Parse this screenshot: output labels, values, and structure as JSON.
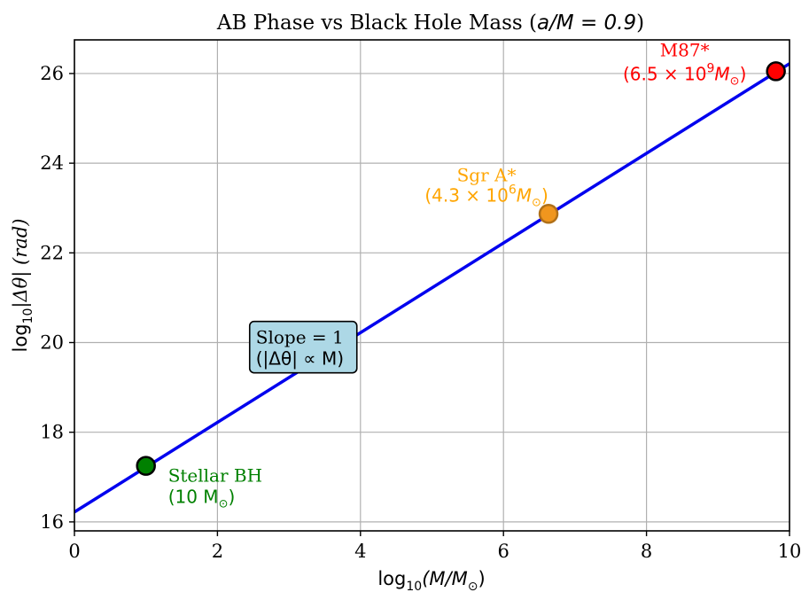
{
  "chart_data": {
    "type": "line",
    "title_prefix": "AB Phase vs Black Hole Mass (",
    "title_math": "a/M = 0.9",
    "title_suffix": ")",
    "xlabel": {
      "prefix": "log",
      "sub": "10",
      "body": "(M/M",
      "sun": "⊙",
      "end": ")"
    },
    "ylabel": {
      "prefix": "log",
      "sub": "10",
      "body": "|Δθ| (rad)"
    },
    "xlim": [
      0,
      10
    ],
    "ylim": [
      15.8,
      26.75
    ],
    "xticks": [
      0,
      2,
      4,
      6,
      8,
      10
    ],
    "yticks": [
      16,
      18,
      20,
      22,
      24,
      26
    ],
    "grid": true,
    "colors": {
      "line": "#0000ee",
      "grid": "#b0b0b0",
      "stellar": "#008000",
      "sgr": "#ffa500",
      "sgr_fill": "#f0961e",
      "m87": "#ff0000"
    },
    "series": [
      {
        "name": "AB phase",
        "x": [
          0,
          10
        ],
        "y": [
          16.22,
          26.22
        ]
      }
    ],
    "points": [
      {
        "key": "stellar",
        "name": "Stellar BH",
        "mass": "(10 M",
        "mass_end": ")",
        "x": 1.0,
        "y": 17.25
      },
      {
        "key": "sgr",
        "name": "Sgr A*",
        "mass": "(4.3 × 10",
        "exp": "6",
        "mass_end": ")",
        "x": 6.63,
        "y": 22.87
      },
      {
        "key": "m87",
        "name": "M87*",
        "mass": "(6.5 × 10",
        "exp": "9",
        "mass_end": ")",
        "x": 9.81,
        "y": 26.05
      }
    ],
    "annotation": {
      "line1": "Slope = 1",
      "line2": "(|Δθ| ∝ M)",
      "x": 2.5,
      "y": 19.7
    }
  }
}
